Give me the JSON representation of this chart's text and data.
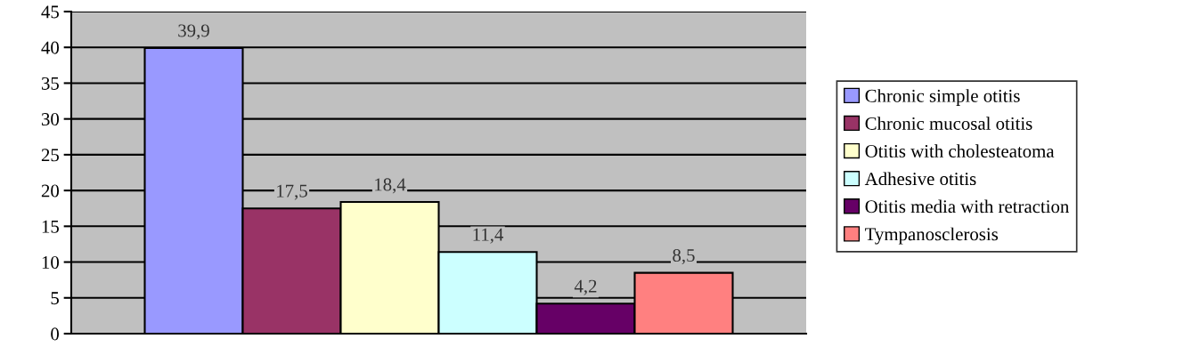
{
  "chart_data": {
    "type": "bar",
    "categories": [
      null
    ],
    "series": [
      {
        "name": "Chronic simple otitis",
        "color": "#9999ff",
        "values": [
          39.9
        ],
        "value_labels": [
          "39,9"
        ]
      },
      {
        "name": "Chronic mucosal otitis",
        "color": "#993366",
        "values": [
          17.5
        ],
        "value_labels": [
          "17,5"
        ]
      },
      {
        "name": "Otitis with cholesteatoma",
        "color": "#ffffcc",
        "values": [
          18.4
        ],
        "value_labels": [
          "18,4"
        ]
      },
      {
        "name": "Adhesive otitis",
        "color": "#ccffff",
        "values": [
          11.4
        ],
        "value_labels": [
          "11,4"
        ]
      },
      {
        "name": "Otitis media with retraction",
        "color": "#660066",
        "values": [
          4.2
        ],
        "value_labels": [
          "4,2"
        ]
      },
      {
        "name": "Tympanosclerosis",
        "color": "#ff8080",
        "values": [
          8.5
        ],
        "value_labels": [
          "8,5"
        ]
      }
    ],
    "ylim": [
      0,
      45
    ],
    "yticks": [
      0,
      5,
      10,
      15,
      20,
      25,
      30,
      35,
      40,
      45
    ],
    "grid": "y",
    "legend": "right"
  }
}
